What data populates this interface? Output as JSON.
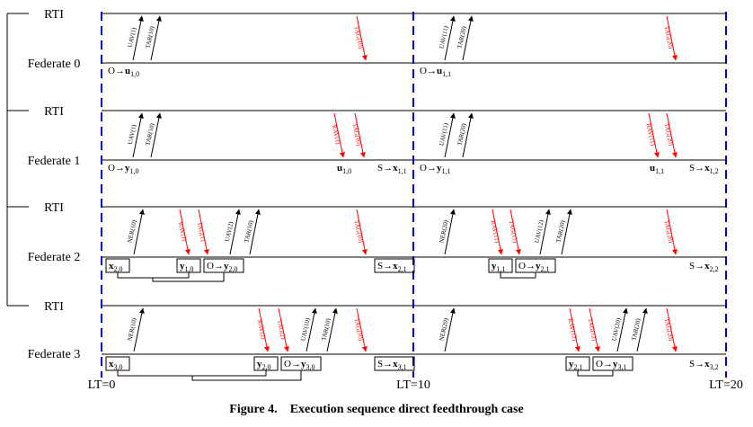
{
  "figure": {
    "caption_label": "Figure 4.",
    "caption_text": "Execution sequence direct feedthrough case"
  },
  "time_labels": [
    "LT=0",
    "LT=10",
    "LT=20"
  ],
  "colors": {
    "request": "#000000",
    "grant": "#ff0000",
    "boundary": "#0000cc"
  },
  "rows": [
    {
      "rti_label": "RTI",
      "federate_label": "Federate 0",
      "messages": [
        {
          "label": "UAV(1)",
          "color": "black"
        },
        {
          "label": "TAR(10)",
          "color": "black"
        },
        {
          "label": "TAG(10)",
          "color": "red"
        },
        {
          "label": "UAV(11)",
          "color": "black"
        },
        {
          "label": "TAR(20)",
          "color": "black"
        },
        {
          "label": "TAG(20)",
          "color": "red"
        }
      ],
      "annotations": [
        {
          "base": "O→",
          "bold": "u",
          "sub": "1,0",
          "boxed": false
        },
        {
          "base": "O→",
          "bold": "u",
          "sub": "1,1",
          "boxed": false
        }
      ]
    },
    {
      "rti_label": "RTI",
      "federate_label": "Federate 1",
      "messages": [
        {
          "label": "UAV(1)",
          "color": "black"
        },
        {
          "label": "TAR(10)",
          "color": "black"
        },
        {
          "label": "RAV(1)",
          "color": "red"
        },
        {
          "label": "TAG(10)",
          "color": "red"
        },
        {
          "label": "UAV(11)",
          "color": "black"
        },
        {
          "label": "TAR(20)",
          "color": "black"
        },
        {
          "label": "RAV(11)",
          "color": "red"
        },
        {
          "label": "TAG(20)",
          "color": "red"
        }
      ],
      "annotations": [
        {
          "base": "O→",
          "bold": "y",
          "sub": "1,0",
          "boxed": false
        },
        {
          "base": "",
          "bold": "u",
          "sub": "1,0",
          "boxed": false
        },
        {
          "base": "S→",
          "bold": "x",
          "sub": "1,1",
          "boxed": false
        },
        {
          "base": "O→",
          "bold": "y",
          "sub": "1,1",
          "boxed": false
        },
        {
          "base": "",
          "bold": "u",
          "sub": "1,1",
          "boxed": false
        },
        {
          "base": "S→",
          "bold": "x",
          "sub": "1,2",
          "boxed": false
        }
      ]
    },
    {
      "rti_label": "RTI",
      "federate_label": "Federate 2",
      "messages": [
        {
          "label": "NER(10)",
          "color": "black"
        },
        {
          "label": "RAV(1)",
          "color": "red"
        },
        {
          "label": "TAG(1)",
          "color": "red"
        },
        {
          "label": "UAV(2)",
          "color": "black"
        },
        {
          "label": "TAR(10)",
          "color": "black"
        },
        {
          "label": "TAG(10)",
          "color": "red"
        },
        {
          "label": "NER(20)",
          "color": "black"
        },
        {
          "label": "RAV(11)",
          "color": "red"
        },
        {
          "label": "TAG(11)",
          "color": "red"
        },
        {
          "label": "UAV(12)",
          "color": "black"
        },
        {
          "label": "TAR(20)",
          "color": "black"
        },
        {
          "label": "TAG(20)",
          "color": "red"
        }
      ],
      "annotations": [
        {
          "base": "",
          "bold": "x",
          "sub": "2,0",
          "boxed": true
        },
        {
          "base": "",
          "bold": "y",
          "sub": "1,0",
          "boxed": true
        },
        {
          "base": "O→",
          "bold": "y",
          "sub": "2,0",
          "boxed": true
        },
        {
          "base": "S→",
          "bold": "x",
          "sub": "2,1",
          "boxed": true
        },
        {
          "base": "",
          "bold": "y",
          "sub": "1,1",
          "boxed": true
        },
        {
          "base": "O→",
          "bold": "y",
          "sub": "2,1",
          "boxed": true
        },
        {
          "base": "S→",
          "bold": "x",
          "sub": "2,2",
          "boxed": false
        }
      ]
    },
    {
      "rti_label": "RTI",
      "federate_label": "Federate 3",
      "messages": [
        {
          "label": "NER(10)",
          "color": "black"
        },
        {
          "label": "RAV(2)",
          "color": "red"
        },
        {
          "label": "TAG(2)",
          "color": "red"
        },
        {
          "label": "UAV(10)",
          "color": "black"
        },
        {
          "label": "TAR(10)",
          "color": "black"
        },
        {
          "label": "TAG(10)",
          "color": "red"
        },
        {
          "label": "NER(20)",
          "color": "black"
        },
        {
          "label": "RAV(12)",
          "color": "red"
        },
        {
          "label": "TAG(12)",
          "color": "red"
        },
        {
          "label": "UAV(20)",
          "color": "black"
        },
        {
          "label": "TAR(20)",
          "color": "black"
        },
        {
          "label": "TAG(20)",
          "color": "red"
        }
      ],
      "annotations": [
        {
          "base": "",
          "bold": "x",
          "sub": "3,0",
          "boxed": true
        },
        {
          "base": "",
          "bold": "y",
          "sub": "2,0",
          "boxed": true
        },
        {
          "base": "O→",
          "bold": "y",
          "sub": "3,0",
          "boxed": true
        },
        {
          "base": "S→",
          "bold": "x",
          "sub": "3,1",
          "boxed": true
        },
        {
          "base": "",
          "bold": "y",
          "sub": "2,1",
          "boxed": true
        },
        {
          "base": "O→",
          "bold": "y",
          "sub": "3,1",
          "boxed": true
        },
        {
          "base": "S→",
          "bold": "x",
          "sub": "3,2",
          "boxed": false
        }
      ]
    }
  ]
}
